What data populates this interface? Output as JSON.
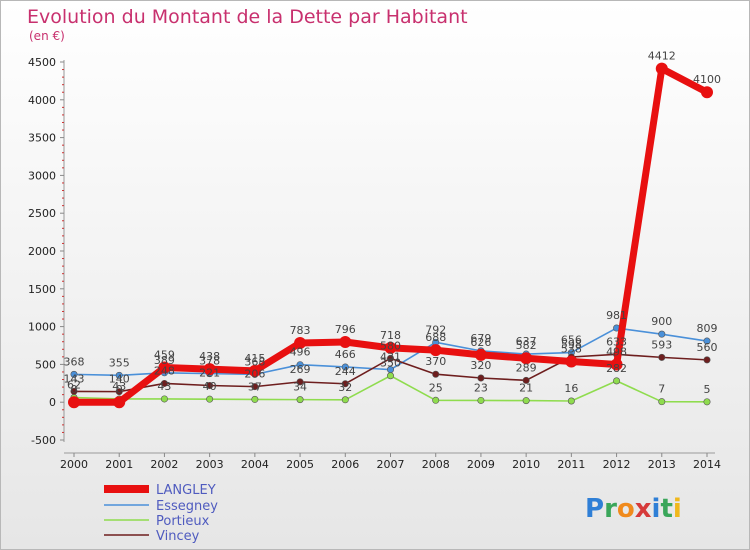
{
  "chart_data": {
    "type": "line",
    "title": "Evolution du Montant de la Dette par Habitant",
    "subtitle": "(en €)",
    "x": [
      "2000",
      "2001",
      "2002",
      "2003",
      "2004",
      "2005",
      "2006",
      "2007",
      "2008",
      "2009",
      "2010",
      "2011",
      "2012",
      "2013",
      "2014"
    ],
    "ylim": [
      -500,
      4500
    ],
    "yticks": [
      -500,
      0,
      500,
      1000,
      1500,
      2000,
      2500,
      3000,
      3500,
      4000,
      4500
    ],
    "grid": false,
    "legend_position": "bottom-left",
    "series": [
      {
        "name": "LANGLEY",
        "color": "#e81010",
        "values": [
          0,
          0,
          459,
          438,
          415,
          783,
          796,
          718,
          688,
          626,
          582,
          538,
          498,
          4412,
          4100
        ],
        "labels": [
          "0",
          "0",
          "459",
          "438",
          "415",
          "783",
          "796",
          "718",
          "688",
          "626",
          "582",
          "538",
          "498",
          "4412",
          "4100"
        ]
      },
      {
        "name": "Essegney",
        "color": "#4a90d9",
        "values": [
          368,
          355,
          389,
          378,
          368,
          496,
          466,
          431,
          792,
          679,
          637,
          656,
          981,
          900,
          809
        ],
        "labels": [
          "368",
          "355",
          "389",
          "378",
          "368",
          "496",
          "466",
          "431",
          "792",
          "679",
          "637",
          "656",
          "981",
          "900",
          "809"
        ]
      },
      {
        "name": "Portieux",
        "color": "#8fdc4e",
        "values": [
          62,
          43,
          43,
          40,
          37,
          34,
          32,
          350,
          25,
          23,
          21,
          16,
          282,
          7,
          5
        ],
        "labels": [
          "62",
          "43",
          "43",
          "40",
          "37",
          "34",
          "32",
          "350",
          "25",
          "23",
          "21",
          "16",
          "282",
          "7",
          "5"
        ]
      },
      {
        "name": "Vincey",
        "color": "#6e1e1e",
        "values": [
          143,
          140,
          248,
          221,
          206,
          269,
          244,
          580,
          370,
          320,
          289,
          598,
          633,
          593,
          560
        ],
        "labels": [
          "143",
          "140",
          "248",
          "221",
          "206",
          "269",
          "244",
          "580",
          "370",
          "320",
          "289",
          "598",
          "633",
          "593",
          "560"
        ]
      }
    ]
  },
  "brand": {
    "name": "Proxiti",
    "letters": [
      {
        "char": "P",
        "color": "#2f7fd6"
      },
      {
        "char": "r",
        "color": "#3aa65a"
      },
      {
        "char": "o",
        "color": "#f08a1c"
      },
      {
        "char": "x",
        "color": "#d63a3a"
      },
      {
        "char": "i",
        "color": "#2f7fd6"
      },
      {
        "char": "t",
        "color": "#3aa65a"
      },
      {
        "char": "i",
        "color": "#f0b81c"
      }
    ]
  }
}
